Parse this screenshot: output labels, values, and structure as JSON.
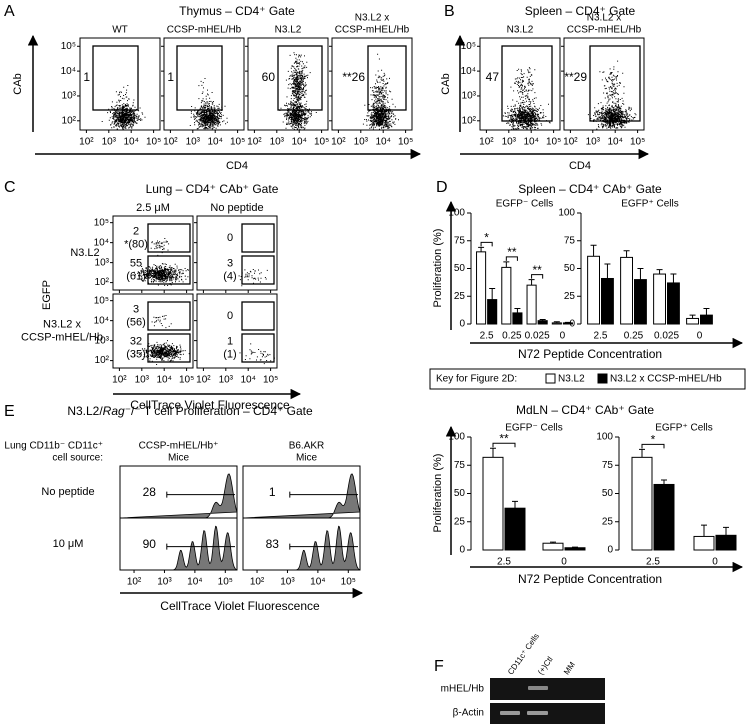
{
  "panel_A": {
    "label": "A",
    "title": "Thymus – CD4⁺ Gate",
    "y_label": "CAb",
    "x_label": "CD4",
    "plots": [
      {
        "header": [
          "WT"
        ],
        "gate": "1"
      },
      {
        "header": [
          "CCSP-mHEL/Hb"
        ],
        "gate": "1"
      },
      {
        "header": [
          "N3.L2"
        ],
        "gate": "60"
      },
      {
        "header": [
          "N3.L2 x",
          "CCSP-mHEL/Hb"
        ],
        "gate": "**26"
      }
    ]
  },
  "panel_B": {
    "label": "B",
    "title": "Spleen – CD4⁺ Gate",
    "y_label": "CAb",
    "x_label": "CD4",
    "plots": [
      {
        "header": [
          "N3.L2"
        ],
        "gate": "47"
      },
      {
        "header": [
          "N3.L2 x",
          "CCSP-mHEL/Hb"
        ],
        "gate": "**29"
      }
    ]
  },
  "axis_ticks": [
    "10²",
    "10³",
    "10⁴",
    "10⁵"
  ],
  "panel_C": {
    "label": "C",
    "title": "Lung – CD4⁺ CAb⁺ Gate",
    "columns": [
      "2.5 μM",
      "No peptide"
    ],
    "rows": [
      [
        "N3.L2"
      ],
      [
        "N3.L2 x",
        "CCSP-mHEL/Hb"
      ]
    ],
    "y_label": "EGFP",
    "x_label": "CellTrace Violet Fluorescence",
    "gates": [
      [
        {
          "upper": [
            "2",
            "*(80)"
          ],
          "lower": [
            "55",
            "(61)"
          ]
        },
        {
          "upper": [
            "0"
          ],
          "lower": [
            "3",
            "(4)"
          ]
        }
      ],
      [
        {
          "upper": [
            "3",
            "(56)"
          ],
          "lower": [
            "32",
            "(35)"
          ]
        },
        {
          "upper": [
            "0"
          ],
          "lower": [
            "1",
            "(1)"
          ]
        }
      ]
    ]
  },
  "panel_D": {
    "label": "D",
    "spleen_title": "Spleen – CD4⁺ CAb⁺ Gate",
    "mdln_title": "MdLN – CD4⁺ CAb⁺ Gate",
    "y_label": "Proliferation (%)",
    "x_label": "N72 Peptide Concentration",
    "legend_title": "Key for Figure 2D:"
  },
  "chart_data": [
    {
      "type": "bar",
      "title": "EGFP⁻ Cells",
      "categories": [
        "2.5",
        "0.25",
        "0.025",
        "0"
      ],
      "series": [
        {
          "name": "N3.L2",
          "color": "#ffffff",
          "values": [
            65,
            51,
            35,
            1
          ],
          "errors": [
            4,
            5,
            5,
            1
          ]
        },
        {
          "name": "N3.L2 x CCSP-mHEL/Hb",
          "color": "#000000",
          "values": [
            22,
            10,
            3,
            1
          ],
          "errors": [
            10,
            4,
            1,
            0.5
          ]
        }
      ],
      "ylim": [
        0,
        100
      ],
      "yticks": [
        0,
        25,
        50,
        75,
        100
      ],
      "annotations": [
        {
          "category": "2.5",
          "label": "*"
        },
        {
          "category": "0.25",
          "label": "**"
        },
        {
          "category": "0.025",
          "label": "**"
        }
      ]
    },
    {
      "type": "bar",
      "title": "EGFP⁺ Cells",
      "categories": [
        "2.5",
        "0.25",
        "0.025",
        "0"
      ],
      "series": [
        {
          "name": "N3.L2",
          "color": "#ffffff",
          "values": [
            61,
            60,
            45,
            5
          ],
          "errors": [
            10,
            6,
            4,
            3
          ]
        },
        {
          "name": "N3.L2 x CCSP-mHEL/Hb",
          "color": "#000000",
          "values": [
            41,
            40,
            37,
            8
          ],
          "errors": [
            13,
            10,
            8,
            6
          ]
        }
      ],
      "ylim": [
        0,
        100
      ],
      "yticks": [
        0,
        25,
        50,
        75,
        100
      ],
      "annotations": []
    },
    {
      "type": "bar",
      "title": "EGFP⁻ Cells",
      "categories": [
        "2.5",
        "0"
      ],
      "series": [
        {
          "name": "N3.L2",
          "color": "#ffffff",
          "values": [
            82,
            6
          ],
          "errors": [
            8,
            1
          ]
        },
        {
          "name": "N3.L2 x CCSP-mHEL/Hb",
          "color": "#000000",
          "values": [
            37,
            2
          ],
          "errors": [
            6,
            0.5
          ]
        }
      ],
      "ylim": [
        0,
        100
      ],
      "yticks": [
        0,
        25,
        50,
        75,
        100
      ],
      "annotations": [
        {
          "category": "2.5",
          "label": "**"
        }
      ]
    },
    {
      "type": "bar",
      "title": "EGFP⁺ Cells",
      "categories": [
        "2.5",
        "0"
      ],
      "series": [
        {
          "name": "N3.L2",
          "color": "#ffffff",
          "values": [
            82,
            12
          ],
          "errors": [
            7,
            10
          ]
        },
        {
          "name": "N3.L2 x CCSP-mHEL/Hb",
          "color": "#000000",
          "values": [
            58,
            13
          ],
          "errors": [
            4,
            7
          ]
        }
      ],
      "ylim": [
        0,
        100
      ],
      "yticks": [
        0,
        25,
        50,
        75,
        100
      ],
      "annotations": [
        {
          "category": "2.5",
          "label": "*"
        }
      ]
    }
  ],
  "panel_E": {
    "label": "E",
    "title_parts": [
      "N3.L2/",
      "Rag",
      "⁻/⁻",
      " T cell Proliferation – CD4⁺ Gate"
    ],
    "source_label": [
      "Lung CD11b⁻ CD11c⁺",
      "cell source:"
    ],
    "columns": [
      [
        "CCSP-mHEL/Hb⁺",
        "Mice"
      ],
      [
        "B6.AKR",
        "Mice"
      ]
    ],
    "rows": [
      "No peptide",
      "10 μM"
    ],
    "gates": [
      [
        "28",
        "1"
      ],
      [
        "90",
        "83"
      ]
    ],
    "x_label": "CellTrace Violet Fluorescence"
  },
  "panel_F": {
    "label": "F",
    "lanes": [
      "CD11c⁺ Cells",
      "(+)Ctl",
      "MM"
    ],
    "rows": [
      "mHEL/Hb",
      "β-Actin"
    ]
  }
}
